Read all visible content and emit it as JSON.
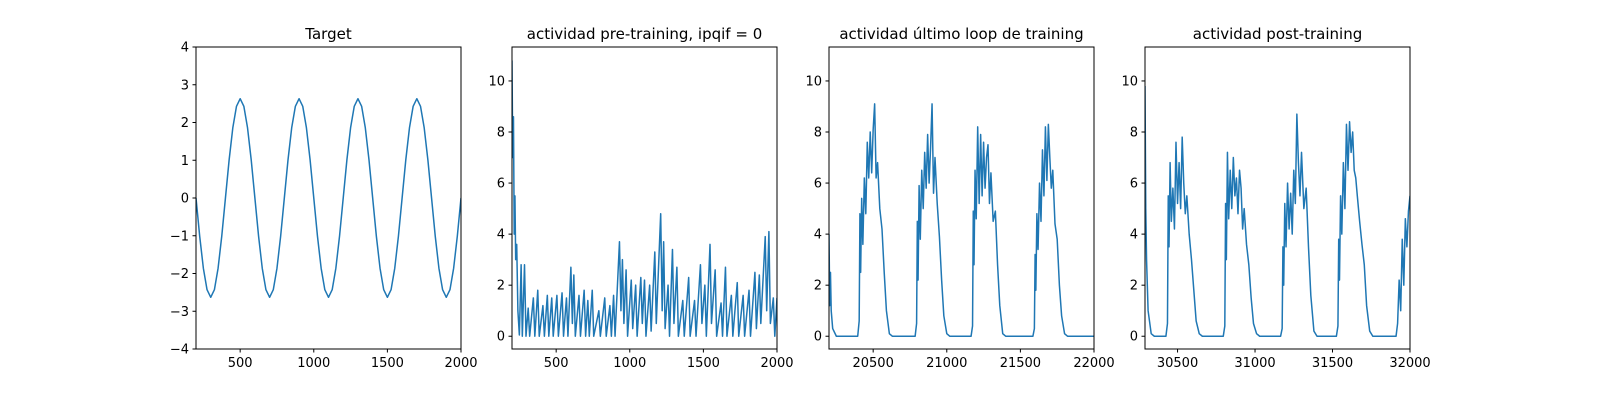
{
  "chart_data": [
    {
      "type": "line",
      "title": "Target",
      "x": [
        200,
        225,
        250,
        275,
        300,
        325,
        350,
        375,
        400,
        425,
        450,
        475,
        500,
        525,
        550,
        575,
        600,
        625,
        650,
        675,
        700,
        725,
        750,
        775,
        800,
        825,
        850,
        875,
        900,
        925,
        950,
        975,
        1000,
        1025,
        1050,
        1075,
        1100,
        1125,
        1150,
        1175,
        1200,
        1225,
        1250,
        1275,
        1300,
        1325,
        1350,
        1375,
        1400,
        1425,
        1450,
        1475,
        1500,
        1525,
        1550,
        1575,
        1600,
        1625,
        1650,
        1675,
        1700,
        1725,
        1750,
        1775,
        1800,
        1825,
        1850,
        1875,
        1900,
        1925,
        1950,
        1975,
        2000
      ],
      "series": [
        {
          "color": "#1f77b4",
          "values": [
            0,
            -1.01,
            -1.86,
            -2.43,
            -2.63,
            -2.43,
            -1.86,
            -1.01,
            0,
            1.01,
            1.86,
            2.43,
            2.63,
            2.43,
            1.86,
            1.01,
            0,
            -1.01,
            -1.86,
            -2.43,
            -2.63,
            -2.43,
            -1.86,
            -1.01,
            0,
            1.01,
            1.86,
            2.43,
            2.63,
            2.43,
            1.86,
            1.01,
            0,
            -1.01,
            -1.86,
            -2.43,
            -2.63,
            -2.43,
            -1.86,
            -1.01,
            0,
            1.01,
            1.86,
            2.43,
            2.63,
            2.43,
            1.86,
            1.01,
            0,
            -1.01,
            -1.86,
            -2.43,
            -2.63,
            -2.43,
            -1.86,
            -1.01,
            0,
            1.01,
            1.86,
            2.43,
            2.63,
            2.43,
            1.86,
            1.01,
            0,
            -1.01,
            -1.86,
            -2.43,
            -2.63,
            -2.43,
            -1.86,
            -1.01,
            0
          ]
        }
      ],
      "xlim": [
        200,
        2000
      ],
      "ylim": [
        -4,
        4
      ],
      "xticks": [
        500,
        1000,
        1500,
        2000
      ],
      "yticks": [
        {
          "value": -4,
          "label": "−4"
        },
        {
          "value": -3,
          "label": "−3"
        },
        {
          "value": -2,
          "label": "−2"
        },
        {
          "value": -1,
          "label": "−1"
        },
        0,
        1,
        2,
        3,
        4
      ]
    },
    {
      "type": "line",
      "title": "actividad pre-training, ipqif = 0",
      "x": [
        200,
        205,
        210,
        215,
        220,
        225,
        232,
        240,
        250,
        262,
        270,
        285,
        295,
        310,
        320,
        345,
        355,
        375,
        385,
        410,
        420,
        440,
        450,
        470,
        480,
        505,
        515,
        540,
        550,
        570,
        580,
        600,
        610,
        620,
        630,
        655,
        665,
        690,
        700,
        715,
        725,
        745,
        755,
        790,
        800,
        830,
        840,
        865,
        875,
        890,
        900,
        930,
        940,
        950,
        960,
        975,
        985,
        1010,
        1020,
        1040,
        1050,
        1075,
        1085,
        1100,
        1110,
        1135,
        1145,
        1170,
        1180,
        1210,
        1220,
        1230,
        1240,
        1260,
        1270,
        1290,
        1300,
        1320,
        1330,
        1360,
        1370,
        1400,
        1410,
        1440,
        1450,
        1480,
        1490,
        1510,
        1520,
        1545,
        1555,
        1580,
        1590,
        1620,
        1630,
        1650,
        1660,
        1690,
        1700,
        1730,
        1740,
        1770,
        1780,
        1810,
        1820,
        1850,
        1860,
        1880,
        1890,
        1920,
        1930,
        1945,
        1955,
        1975,
        1985,
        2000
      ],
      "series": [
        {
          "color": "#1f77b4",
          "values": [
            10.8,
            7,
            8.6,
            4,
            5.5,
            3,
            3.6,
            1,
            0.05,
            2.8,
            0,
            2.8,
            0,
            1.1,
            0,
            1.5,
            0,
            1.8,
            0,
            1.2,
            0,
            1.6,
            0,
            1.5,
            0,
            1.6,
            0,
            1.7,
            0,
            1.5,
            0,
            2.7,
            0.5,
            2.4,
            0,
            1.6,
            0,
            1.8,
            0,
            1.4,
            0,
            1.8,
            0,
            1,
            0,
            1.5,
            0,
            1.2,
            0,
            1.6,
            0,
            3.7,
            1,
            3,
            0.5,
            2.6,
            0,
            2.2,
            0.3,
            2,
            0,
            2.3,
            0.5,
            2.2,
            0,
            2,
            0.2,
            3.3,
            0.5,
            4.8,
            1,
            3.7,
            0.3,
            2,
            0,
            3.4,
            0.5,
            2.7,
            0,
            1.4,
            0,
            2.3,
            0,
            1.4,
            0,
            2.8,
            0.5,
            2,
            0,
            3.6,
            0.5,
            2.6,
            0,
            1.3,
            0,
            2.7,
            0,
            1.6,
            0,
            2.1,
            0,
            1.6,
            0,
            1.8,
            0,
            2.5,
            0.3,
            2.4,
            0.5,
            3.9,
            1,
            4.1,
            0.5,
            1.5,
            0,
            1.5
          ]
        }
      ],
      "xlim": [
        200,
        2000
      ],
      "ylim": [
        -0.5,
        11.33
      ],
      "xticks": [
        500,
        1000,
        1500,
        2000
      ],
      "yticks": [
        0,
        2,
        4,
        6,
        8,
        10
      ]
    },
    {
      "type": "line",
      "title": "actividad último loop de training",
      "x": [
        20200,
        20205,
        20210,
        20215,
        20225,
        20250,
        20395,
        20405,
        20410,
        20415,
        20422,
        20430,
        20440,
        20450,
        20460,
        20470,
        20480,
        20490,
        20500,
        20510,
        20520,
        20530,
        20545,
        20560,
        20575,
        20590,
        20610,
        20630,
        20785,
        20795,
        20800,
        20805,
        20812,
        20820,
        20830,
        20840,
        20850,
        20860,
        20870,
        20880,
        20890,
        20900,
        20910,
        20920,
        20935,
        20950,
        20965,
        20980,
        21000,
        21020,
        21165,
        21175,
        21180,
        21185,
        21192,
        21200,
        21210,
        21220,
        21230,
        21240,
        21250,
        21260,
        21270,
        21280,
        21290,
        21300,
        21315,
        21330,
        21345,
        21360,
        21380,
        21400,
        21585,
        21595,
        21600,
        21605,
        21612,
        21620,
        21630,
        21640,
        21650,
        21660,
        21670,
        21680,
        21690,
        21700,
        21710,
        21720,
        21735,
        21750,
        21765,
        21780,
        21800,
        21820,
        22000
      ],
      "series": [
        {
          "color": "#1f77b4",
          "values": [
            4,
            1.2,
            2.5,
            1,
            0.3,
            0,
            0,
            0.6,
            4.8,
            2.5,
            5.4,
            3.6,
            6.2,
            4.8,
            7.6,
            6.2,
            8,
            6.4,
            8.1,
            9.1,
            6.2,
            6.8,
            5,
            4.2,
            2.5,
            1,
            0.1,
            0,
            0,
            0.5,
            4.5,
            2.2,
            5.9,
            3.8,
            6.5,
            5,
            7.2,
            5.8,
            7.9,
            6,
            7.4,
            9.1,
            5.6,
            7,
            5.2,
            3.9,
            2.2,
            0.8,
            0.1,
            0,
            0,
            0.4,
            4.9,
            2.8,
            6.5,
            4.6,
            8.2,
            5.2,
            7.9,
            5.5,
            7.6,
            5.8,
            7,
            7.5,
            5.2,
            6.4,
            4.5,
            4.9,
            2.8,
            1.2,
            0.1,
            0,
            0,
            0.3,
            3.2,
            1.8,
            4.8,
            3.4,
            6,
            4.5,
            7.3,
            5.5,
            8.2,
            6.1,
            8.3,
            7,
            5.8,
            6.5,
            4.4,
            3.8,
            2,
            0.8,
            0.1,
            0,
            0
          ]
        }
      ],
      "xlim": [
        20200,
        22000
      ],
      "ylim": [
        -0.5,
        11.33
      ],
      "xticks": [
        20500,
        21000,
        21500,
        22000
      ],
      "yticks": [
        0,
        2,
        4,
        6,
        8,
        10
      ]
    },
    {
      "type": "line",
      "title": "actividad post-training",
      "x": [
        30290,
        30295,
        30300,
        30310,
        30330,
        30350,
        30425,
        30435,
        30440,
        30445,
        30452,
        30460,
        30470,
        30480,
        30490,
        30500,
        30510,
        30520,
        30530,
        30540,
        30550,
        30560,
        30575,
        30590,
        30605,
        30620,
        30640,
        30660,
        30795,
        30805,
        30810,
        30815,
        30822,
        30830,
        30840,
        30850,
        30860,
        30870,
        30880,
        30890,
        30900,
        30910,
        30920,
        30930,
        30945,
        30960,
        30975,
        30990,
        31010,
        31030,
        31165,
        31175,
        31180,
        31185,
        31192,
        31200,
        31210,
        31220,
        31230,
        31240,
        31250,
        31260,
        31270,
        31280,
        31290,
        31300,
        31315,
        31330,
        31345,
        31360,
        31380,
        31400,
        31525,
        31535,
        31540,
        31545,
        31552,
        31560,
        31570,
        31580,
        31590,
        31600,
        31610,
        31620,
        31630,
        31640,
        31650,
        31660,
        31675,
        31690,
        31705,
        31720,
        31740,
        31760,
        31910,
        31920,
        31930,
        31940,
        31950,
        31960,
        31970,
        31980,
        31990,
        32000
      ],
      "series": [
        {
          "color": "#1f77b4",
          "values": [
            9.8,
            5,
            3,
            1,
            0.1,
            0,
            0,
            0.5,
            5.5,
            3.5,
            6.8,
            4.5,
            5.8,
            4.2,
            7.6,
            5.2,
            6.8,
            5,
            7.8,
            6,
            4.8,
            5.5,
            4,
            3,
            1.8,
            0.6,
            0.1,
            0,
            0,
            0.4,
            5.2,
            3,
            7.2,
            4.6,
            6.5,
            5,
            7,
            5.5,
            6.2,
            4.8,
            6.5,
            5.8,
            4.2,
            5,
            3.6,
            2.8,
            1.5,
            0.5,
            0.1,
            0,
            0,
            0.3,
            3.5,
            2,
            5.2,
            3.5,
            6,
            4.2,
            5.6,
            4,
            6.5,
            5.2,
            8.7,
            6.8,
            5.5,
            7.2,
            5,
            5.8,
            3.5,
            1.6,
            0.2,
            0,
            0,
            0.4,
            3.8,
            2.2,
            5.5,
            4,
            6.8,
            5,
            8.3,
            6.5,
            8.4,
            7.2,
            8,
            6.5,
            6.2,
            5.5,
            4.5,
            3.6,
            2.8,
            1.2,
            0.2,
            0,
            0,
            0.5,
            2.2,
            1,
            3.8,
            2,
            4.6,
            3.5,
            4.9,
            5.5
          ]
        }
      ],
      "xlim": [
        30290,
        32000
      ],
      "ylim": [
        -0.5,
        11.33
      ],
      "xticks": [
        30500,
        31000,
        31500,
        32000
      ],
      "yticks": [
        0,
        2,
        4,
        6,
        8,
        10
      ]
    }
  ]
}
